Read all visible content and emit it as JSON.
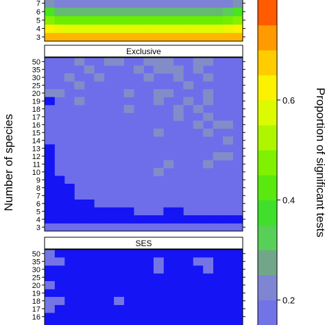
{
  "chart_data": {
    "type": "heatmap",
    "ylabel": "Number of species",
    "colorbar_label": "Proportion of significant tests",
    "y_categories": [
      "3",
      "4",
      "5",
      "6",
      "7",
      "8",
      "9",
      "10",
      "11",
      "12",
      "13",
      "14",
      "15",
      "16",
      "17",
      "18",
      "19",
      "20",
      "25",
      "30",
      "35",
      "50"
    ],
    "colorbar_ticks": [
      0.2,
      0.4,
      0.6
    ],
    "colorbar_range": [
      0.15,
      0.8
    ],
    "panels": [
      {
        "title": "",
        "visible_rows": [
          "3",
          "4",
          "5",
          "6",
          "7"
        ],
        "values": [
          [
            0.7,
            0.7,
            0.7,
            0.7,
            0.7,
            0.7,
            0.7,
            0.7,
            0.7,
            0.7,
            0.7,
            0.7,
            0.7,
            0.7,
            0.7,
            0.7,
            0.7,
            0.7,
            0.7,
            0.7
          ],
          [
            0.62,
            0.6,
            0.58,
            0.58,
            0.58,
            0.58,
            0.58,
            0.58,
            0.58,
            0.58,
            0.58,
            0.58,
            0.58,
            0.58,
            0.58,
            0.58,
            0.58,
            0.58,
            0.6,
            0.62
          ],
          [
            0.48,
            0.45,
            0.45,
            0.45,
            0.45,
            0.45,
            0.45,
            0.45,
            0.45,
            0.45,
            0.45,
            0.45,
            0.45,
            0.45,
            0.45,
            0.45,
            0.45,
            0.45,
            0.46,
            0.48
          ],
          [
            0.4,
            0.3,
            0.3,
            0.3,
            0.3,
            0.3,
            0.3,
            0.3,
            0.3,
            0.3,
            0.3,
            0.3,
            0.3,
            0.3,
            0.3,
            0.3,
            0.3,
            0.3,
            0.32,
            0.4
          ],
          [
            0.25,
            0.22,
            0.22,
            0.22,
            0.22,
            0.22,
            0.22,
            0.22,
            0.22,
            0.22,
            0.22,
            0.22,
            0.22,
            0.22,
            0.22,
            0.22,
            0.22,
            0.22,
            0.22,
            0.25
          ]
        ]
      },
      {
        "title": "Exclusive",
        "base": 0.15,
        "cells": [
          {
            "row": "50",
            "cols": [
              3,
              6,
              7,
              10,
              11,
              12,
              15,
              16
            ]
          },
          {
            "row": "35",
            "cols": [
              4,
              9,
              11,
              12,
              13,
              15
            ]
          },
          {
            "row": "30",
            "cols": [
              2,
              5,
              10,
              13,
              16
            ]
          },
          {
            "row": "25",
            "cols": [
              3,
              14
            ]
          },
          {
            "row": "20",
            "cols": [
              0,
              1,
              8,
              11,
              12,
              16
            ]
          },
          {
            "row": "19",
            "cols": [
              3,
              11,
              14,
              16
            ]
          },
          {
            "row": "18",
            "cols": [
              8,
              13,
              15
            ]
          },
          {
            "row": "17",
            "cols": [
              13,
              16
            ]
          },
          {
            "row": "16",
            "cols": [
              15,
              17,
              18
            ]
          },
          {
            "row": "15",
            "cols": [
              11,
              16
            ]
          },
          {
            "row": "14",
            "cols": [
              18
            ]
          },
          {
            "row": "12",
            "cols": [
              17,
              18
            ]
          },
          {
            "row": "11",
            "cols": [
              12,
              16
            ]
          },
          {
            "row": "10",
            "cols": [
              11
            ]
          }
        ],
        "zero_region": [
          {
            "row": "19",
            "cols": [
              0
            ]
          },
          {
            "row": "13",
            "cols": [
              0
            ]
          },
          {
            "row": "12",
            "cols": [
              0
            ]
          },
          {
            "row": "11",
            "cols": [
              0
            ]
          },
          {
            "row": "10",
            "cols": [
              0
            ]
          },
          {
            "row": "9",
            "cols": [
              0,
              1
            ]
          },
          {
            "row": "8",
            "cols": [
              0,
              1,
              2
            ]
          },
          {
            "row": "7",
            "cols": [
              0,
              1,
              2
            ]
          },
          {
            "row": "6",
            "cols": [
              0,
              1,
              2,
              3,
              4
            ]
          },
          {
            "row": "5",
            "cols": [
              0,
              1,
              2,
              3,
              4,
              5,
              6,
              7,
              8,
              12,
              13
            ]
          },
          {
            "row": "4",
            "cols": [
              0,
              1,
              2,
              3,
              4,
              5,
              6,
              7,
              8,
              9,
              10,
              11,
              12,
              13,
              14,
              15,
              16,
              17,
              18,
              19
            ]
          }
        ]
      },
      {
        "title": "SES",
        "visible_rows": [
          "16",
          "17",
          "18",
          "19",
          "20",
          "25",
          "30",
          "35",
          "50"
        ],
        "cells": [
          {
            "row": "50",
            "cols": [
              0
            ]
          },
          {
            "row": "35",
            "cols": [
              0,
              1,
              11,
              15,
              16
            ]
          },
          {
            "row": "30",
            "cols": [
              11,
              16
            ]
          },
          {
            "row": "20",
            "cols": [
              0
            ]
          },
          {
            "row": "18",
            "cols": [
              0,
              1,
              7
            ]
          },
          {
            "row": "17",
            "cols": [
              0
            ]
          }
        ]
      }
    ]
  }
}
